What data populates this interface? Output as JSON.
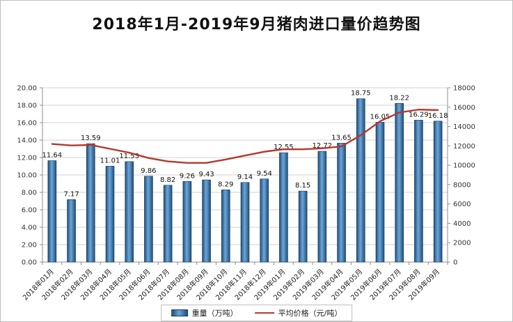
{
  "chart_data": {
    "type": "combo",
    "title": "2018年1月-2019年9月猪肉进口量价趋势图",
    "categories": [
      "2018年01月",
      "2018年02月",
      "2018年03月",
      "2018年04月",
      "2018年05月",
      "2018年06月",
      "2018年07月",
      "2018年08月",
      "2018年09月",
      "2018年10月",
      "2018年11月",
      "2018年12月",
      "2019年01月",
      "2019年02月",
      "2019年03月",
      "2019年04月",
      "2019年05月",
      "2019年06月",
      "2019年07月",
      "2019年08月",
      "2019年09月"
    ],
    "series": [
      {
        "name": "重量（万吨）",
        "type": "bar",
        "y_axis": "left",
        "values": [
          11.64,
          7.17,
          13.59,
          11.01,
          11.53,
          9.86,
          8.82,
          9.26,
          9.43,
          8.29,
          9.14,
          9.54,
          12.55,
          8.15,
          12.72,
          13.65,
          18.75,
          16.05,
          18.22,
          16.29,
          16.18
        ]
      },
      {
        "name": "平均价格（元/吨）",
        "type": "line",
        "y_axis": "right",
        "estimated_from_chart": true,
        "values": [
          12200,
          12050,
          12100,
          11700,
          11300,
          10750,
          10400,
          10250,
          10250,
          10600,
          11000,
          11400,
          11650,
          11650,
          11750,
          11950,
          13100,
          14550,
          15450,
          15750,
          15700
        ]
      }
    ],
    "left_axis": {
      "min": 0,
      "max": 20,
      "step": 2,
      "labels": [
        "0.00",
        "2.00",
        "4.00",
        "6.00",
        "8.00",
        "10.00",
        "12.00",
        "14.00",
        "16.00",
        "18.00",
        "20.00"
      ]
    },
    "right_axis": {
      "min": 0,
      "max": 18000,
      "step": 2000,
      "labels": [
        "0",
        "2000",
        "4000",
        "6000",
        "8000",
        "10000",
        "12000",
        "14000",
        "16000",
        "18000"
      ]
    },
    "grid": true,
    "legend_position": "bottom",
    "colors": {
      "bar_dark": "#1d4e79",
      "bar_light": "#6ea6d9",
      "bar_border": "#16375a",
      "line": "#b5382d",
      "grid": "#d0d0d0",
      "axis": "#8c8c8c",
      "text": "#1a1a1a"
    }
  }
}
